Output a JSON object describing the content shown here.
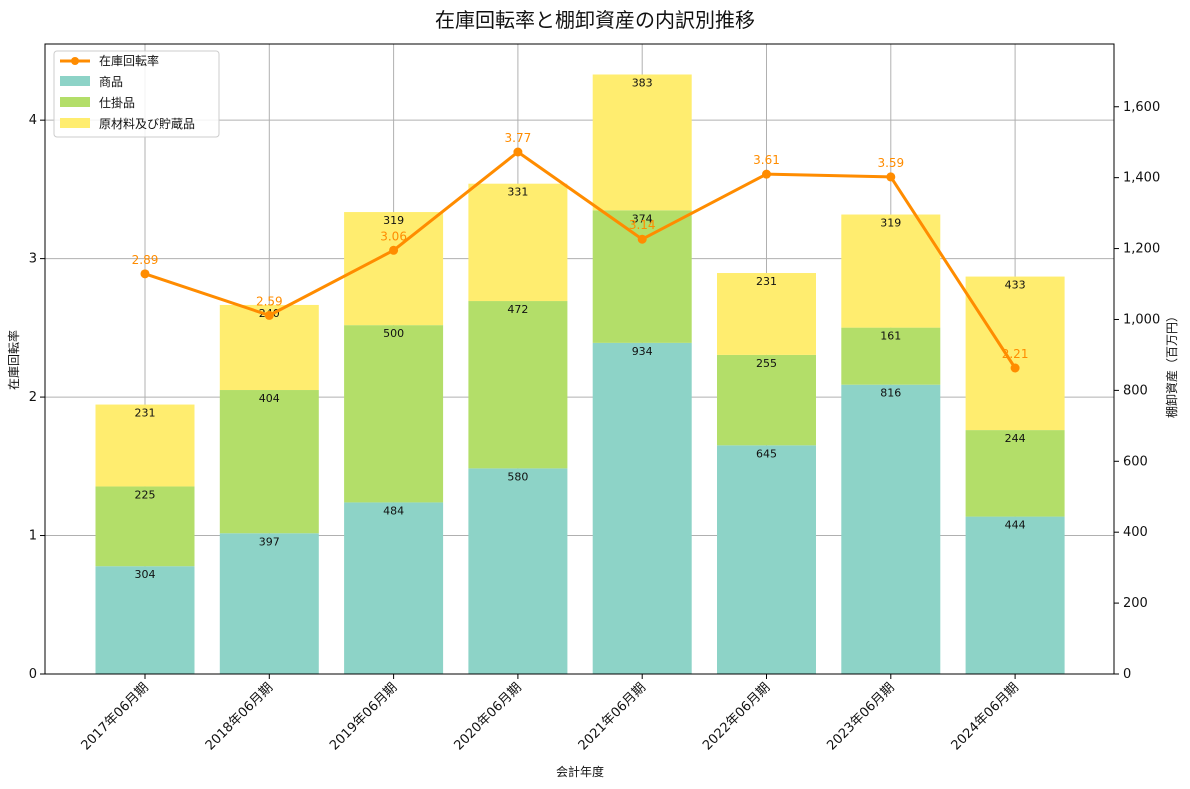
{
  "chart_data": {
    "type": "bar",
    "stacked": true,
    "title": "在庫回転率と棚卸資産の内訳別推移",
    "xlabel": "会計年度",
    "ylabel_left": "在庫回転率",
    "ylabel_right": "棚卸資産（百万円）",
    "categories": [
      "2017年06月期",
      "2018年06月期",
      "2019年06月期",
      "2020年06月期",
      "2021年06月期",
      "2022年06月期",
      "2023年06月期",
      "2024年06月期"
    ],
    "series": [
      {
        "name": "商品",
        "axis": "right",
        "color": "#8dd3c7",
        "values": [
          304,
          397,
          484,
          580,
          934,
          645,
          816,
          444
        ]
      },
      {
        "name": "仕掛品",
        "axis": "right",
        "color": "#b3de69",
        "values": [
          225,
          404,
          500,
          472,
          374,
          255,
          161,
          244
        ]
      },
      {
        "name": "原材料及び貯蔵品",
        "axis": "right",
        "color": "#ffed6f",
        "values": [
          231,
          240,
          319,
          331,
          383,
          231,
          319,
          433
        ]
      }
    ],
    "line": {
      "name": "在庫回転率",
      "axis": "left",
      "color": "#ff8c00",
      "values": [
        2.89,
        2.59,
        3.06,
        3.77,
        3.14,
        3.61,
        3.59,
        2.21
      ]
    },
    "ylim_left": [
      0,
      4.55
    ],
    "ylim_right": [
      0,
      1777
    ],
    "yticks_left": [
      0,
      1,
      2,
      3,
      4
    ],
    "yticks_right": [
      0,
      200,
      400,
      600,
      800,
      1000,
      1200,
      1400,
      1600
    ],
    "yticks_right_labels": [
      "0",
      "200",
      "400",
      "600",
      "800",
      "1,000",
      "1,200",
      "1,400",
      "1,600"
    ],
    "grid": true,
    "legend_position": "top-left"
  }
}
